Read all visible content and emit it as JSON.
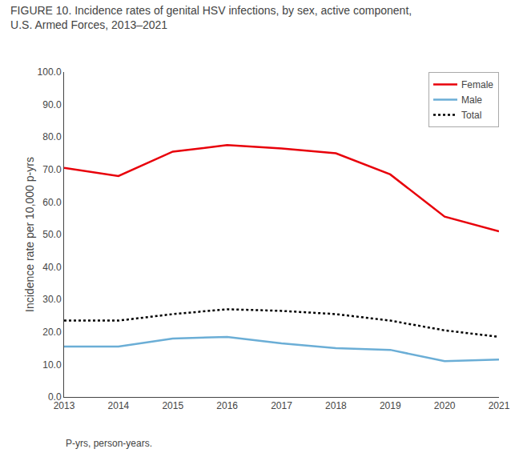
{
  "chart_data": {
    "type": "line",
    "title": "FIGURE 10. Incidence rates of genital HSV infections, by sex, active component, U.S. Armed Forces, 2013–2021",
    "y_label": "Incidence rate per 10,000 p-yrs",
    "annotations": [
      "P-yrs, person-years."
    ],
    "x": [
      2013,
      2014,
      2015,
      2016,
      2017,
      2018,
      2019,
      2020,
      2021
    ],
    "series": [
      {
        "name": "Female",
        "color": "#e8000a",
        "line_style": "solid",
        "values": [
          70.5,
          68.0,
          75.5,
          77.5,
          76.5,
          75.0,
          68.5,
          55.5,
          51.0
        ]
      },
      {
        "name": "Male",
        "color": "#6baed6",
        "line_style": "solid",
        "values": [
          15.5,
          15.5,
          18.0,
          18.5,
          16.5,
          15.0,
          14.5,
          11.0,
          11.5
        ]
      },
      {
        "name": "Total",
        "color": "#000000",
        "line_style": "dotted",
        "values": [
          23.5,
          23.5,
          25.5,
          27.0,
          26.5,
          25.5,
          23.5,
          20.5,
          18.5
        ]
      }
    ],
    "xlim": [
      2013,
      2021
    ],
    "xticks": [
      2013,
      2014,
      2015,
      2016,
      2017,
      2018,
      2019,
      2020,
      2021
    ],
    "ylim": [
      0,
      100
    ],
    "yticks": [
      {
        "value": 0,
        "label": "0.0"
      },
      {
        "value": 10,
        "label": "10.0"
      },
      {
        "value": 20,
        "label": "20.0"
      },
      {
        "value": 30,
        "label": "30.0"
      },
      {
        "value": 40,
        "label": "40.0"
      },
      {
        "value": 50,
        "label": "50.0"
      },
      {
        "value": 60,
        "label": "60.0"
      },
      {
        "value": 70,
        "label": "70.0"
      },
      {
        "value": 80,
        "label": "80.0"
      },
      {
        "value": 90,
        "label": "90.0"
      },
      {
        "value": 100,
        "label": "100.0"
      }
    ],
    "grid": false,
    "legend": "upper right"
  }
}
